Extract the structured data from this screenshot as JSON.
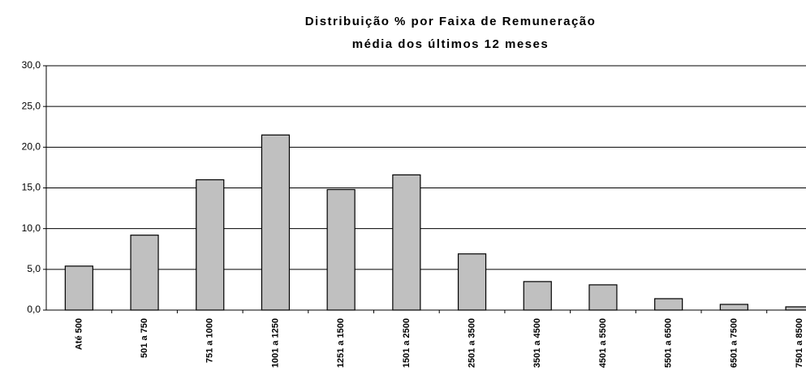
{
  "chart_data": {
    "type": "bar",
    "title": "Distribuição % por Faixa de Remuneração",
    "subtitle": "média dos últimos 12 meses",
    "categories": [
      "Até 500",
      "501 a 750",
      "751 a 1000",
      "1001 a 1250",
      "1251 a 1500",
      "1501 a 2500",
      "2501 a 3500",
      "3501 a 4500",
      "4501 a 5500",
      "5501 a 6500",
      "6501 a 7500",
      "7501 a 8500"
    ],
    "values": [
      5.4,
      9.2,
      16.0,
      21.5,
      14.8,
      16.6,
      6.9,
      3.5,
      3.1,
      1.4,
      0.7,
      0.4
    ],
    "color": "#c0c0c0",
    "ylim": [
      0,
      30
    ],
    "yticks": [
      {
        "value": 0,
        "label": "0,0"
      },
      {
        "value": 5,
        "label": "5,0"
      },
      {
        "value": 10,
        "label": "10,0"
      },
      {
        "value": 15,
        "label": "15,0"
      },
      {
        "value": 20,
        "label": "20,0"
      },
      {
        "value": 25,
        "label": "25,0"
      },
      {
        "value": 30,
        "label": "30,0"
      }
    ],
    "grid": true
  }
}
